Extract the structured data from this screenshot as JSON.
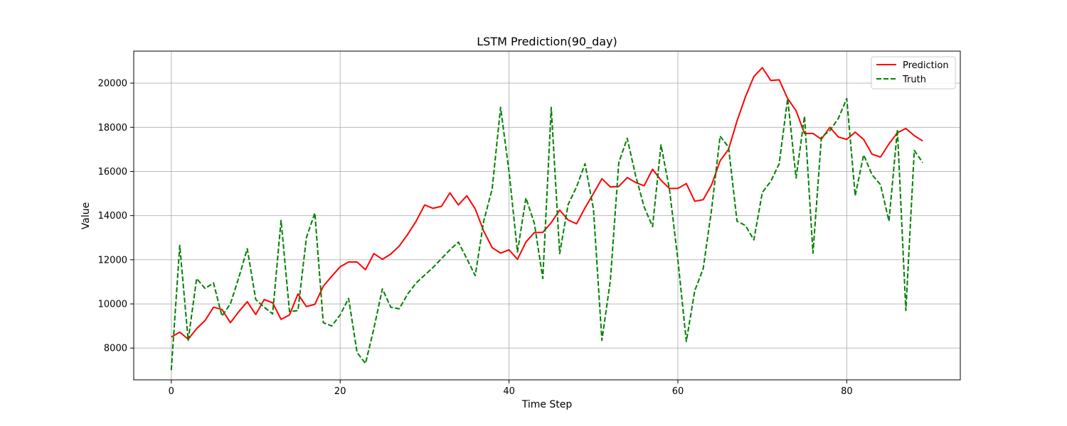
{
  "chart_data": {
    "type": "line",
    "title": "LSTM Prediction(90_day)",
    "xlabel": "Time Step",
    "ylabel": "Value",
    "xlim": [
      -4.45,
      93.45
    ],
    "ylim": [
      6560,
      21450
    ],
    "xticks": [
      0,
      20,
      40,
      60,
      80
    ],
    "yticks": [
      8000,
      10000,
      12000,
      14000,
      16000,
      18000,
      20000
    ],
    "grid": true,
    "legend_position": "top-right",
    "series": [
      {
        "name": "Prediction",
        "color": "#ff0000",
        "style": "solid",
        "values": [
          8500,
          8720,
          8400,
          8880,
          9250,
          9850,
          9750,
          9150,
          9650,
          10100,
          9520,
          10200,
          10050,
          9300,
          9500,
          10450,
          9880,
          9980,
          10800,
          11250,
          11680,
          11900,
          11900,
          11550,
          12280,
          12020,
          12260,
          12620,
          13150,
          13750,
          14480,
          14330,
          14420,
          15030,
          14480,
          14900,
          14300,
          13300,
          12550,
          12300,
          12450,
          12020,
          12800,
          13230,
          13240,
          13680,
          14250,
          13800,
          13630,
          14350,
          15000,
          15670,
          15300,
          15320,
          15720,
          15500,
          15350,
          16100,
          15600,
          15230,
          15230,
          15450,
          14650,
          14720,
          15400,
          16480,
          17000,
          18280,
          19380,
          20300,
          20700,
          20120,
          20150,
          19300,
          18750,
          17720,
          17720,
          17460,
          18000,
          17560,
          17450,
          17780,
          17450,
          16780,
          16650,
          17250,
          17750,
          17950,
          17620,
          17380
        ]
      },
      {
        "name": "Truth",
        "color": "#008000",
        "style": "dashed",
        "values": [
          7000,
          12650,
          8350,
          11150,
          10700,
          10950,
          9450,
          10000,
          11200,
          12500,
          10200,
          9850,
          9550,
          13780,
          9650,
          9700,
          13000,
          14120,
          9150,
          9000,
          9500,
          10250,
          7800,
          7300,
          8900,
          10680,
          9850,
          9780,
          10450,
          10950,
          11300,
          11650,
          12050,
          12450,
          12800,
          12050,
          11280,
          13750,
          15200,
          18900,
          16000,
          12350,
          14800,
          13650,
          11150,
          18900,
          12280,
          14500,
          15300,
          16350,
          14300,
          8350,
          11050,
          16400,
          17500,
          15800,
          14400,
          13500,
          17200,
          15200,
          12000,
          8300,
          10600,
          11600,
          14300,
          17600,
          17100,
          13750,
          13550,
          12900,
          15050,
          15550,
          16350,
          19300,
          15700,
          18500,
          12300,
          17550,
          17850,
          18400,
          19300,
          14900,
          16750,
          15850,
          15400,
          13750,
          17900,
          9700,
          16950,
          16400
        ]
      }
    ]
  }
}
